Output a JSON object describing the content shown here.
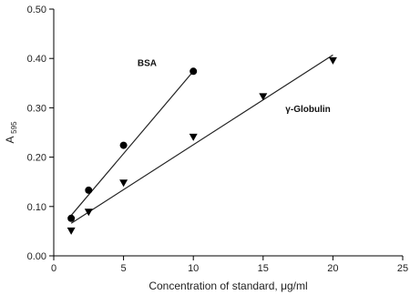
{
  "chart_data": {
    "type": "scatter",
    "title": "",
    "xlabel": "Concentration of standard, μg/ml",
    "ylabel_main": "A",
    "ylabel_sub": "595",
    "xlim": [
      0,
      25
    ],
    "ylim": [
      0,
      0.5
    ],
    "x_ticks": [
      "0",
      "5",
      "10",
      "15",
      "20",
      "25"
    ],
    "y_ticks": [
      "0.00",
      "0.10",
      "0.20",
      "0.30",
      "0.40",
      "0.50"
    ],
    "grid": false,
    "legend": "none",
    "series": [
      {
        "name": "BSA",
        "marker": "circle",
        "color": "#000000",
        "x": [
          1.25,
          2.5,
          5,
          10
        ],
        "y": [
          0.076,
          0.133,
          0.224,
          0.374
        ],
        "fit_line": {
          "x": [
            1.25,
            10
          ],
          "y": [
            0.082,
            0.374
          ]
        }
      },
      {
        "name": "γ-Globulin",
        "marker": "triangle-down",
        "color": "#000000",
        "x": [
          1.25,
          2.5,
          5,
          10,
          15,
          20
        ],
        "y": [
          0.051,
          0.089,
          0.148,
          0.241,
          0.323,
          0.396
        ],
        "fit_line": {
          "x": [
            1.25,
            20
          ],
          "y": [
            0.066,
            0.407
          ]
        }
      }
    ]
  }
}
